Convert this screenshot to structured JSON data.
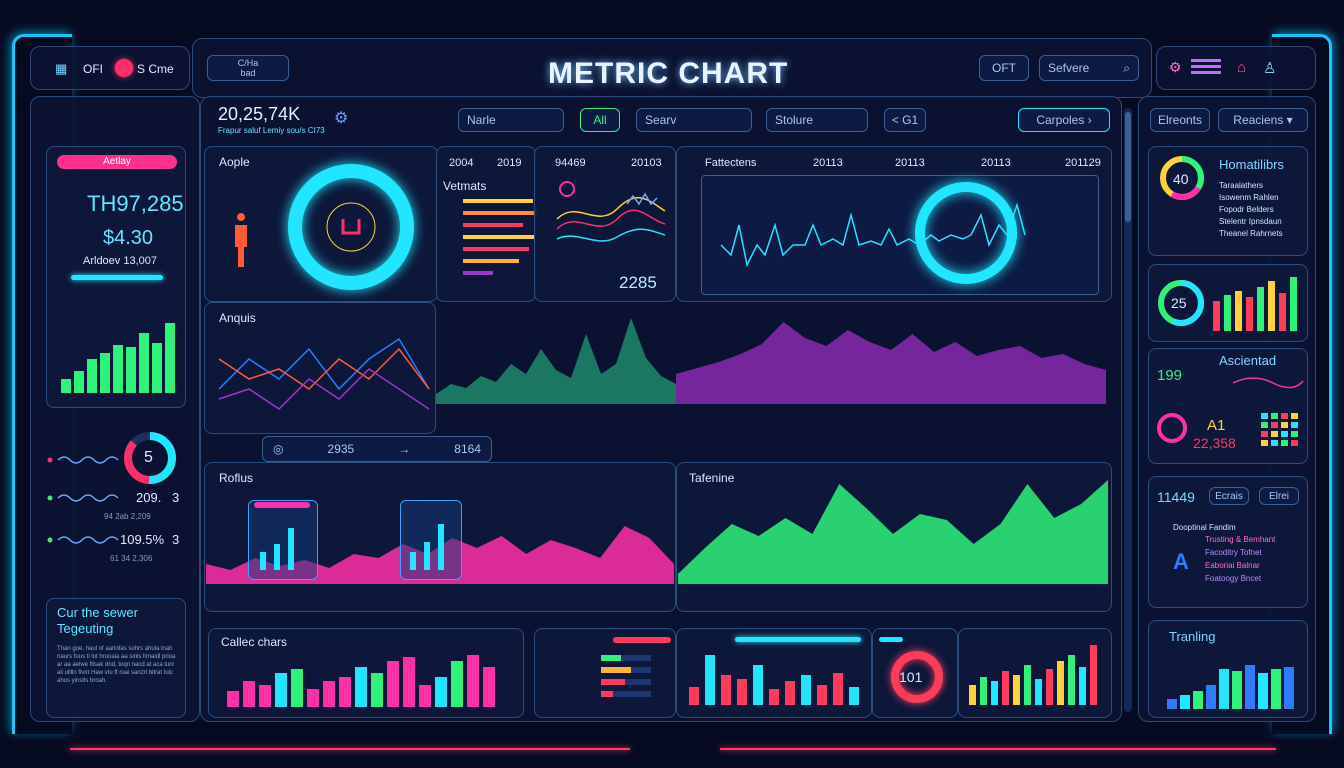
{
  "app": {
    "title": "METRIC CHART"
  },
  "topbar_left": {
    "item1": "OFI",
    "item2": "S Cme"
  },
  "topbar_center_left": {
    "badge_top": "C/Ha",
    "badge_sub": "bad"
  },
  "topbar_right": {
    "toggle": "OFT",
    "search_placeholder": "Sefvere"
  },
  "filters": {
    "name": "Narle",
    "all": "All",
    "search": "Searv",
    "stolure": "Stolure",
    "prev_label": "< G1",
    "dropdown_left": "Carpoles",
    "dropdown_right1": "Elreonts",
    "dropdown_right2": "Reaciens"
  },
  "headline": {
    "value": "20,25,74K",
    "sub": "Frapur saluf Lemiy sou/s CI73"
  },
  "left_card": {
    "badge": "Aetlay",
    "value1": "TH97,285",
    "value2": "$4.30",
    "sub": "Arldoev 13,007"
  },
  "left_gauge": {
    "value": "5"
  },
  "left_rows": [
    {
      "value": "209.",
      "badge": "3",
      "sub": "94  2ab  2,209"
    },
    {
      "value": "109.5%",
      "badge": "3",
      "sub": "61  34 2,306"
    }
  ],
  "left_note": {
    "title": "Cur the sewer Tegeuting",
    "body": "Than goe, haul of aarlofas suhrs ahula lnah naurs fuus ti lot hruoaia aa sinls llrnaidl prioa ar aa aelwe flisak dnd, toqn nacd at aca lunr ali ulllln flvirt Haw vtu ft ruai sanzrl bitrat Iulc ahos yinslts broah."
  },
  "sections": {
    "apple": "Aople",
    "vetmats": "Vetmats",
    "fattectens": "Fattectens",
    "anquis": "Anquis",
    "rotlus": "Roflus",
    "tafenine": "Tafenine",
    "callec": "Callec chars"
  },
  "header_years": {
    "a": "2004",
    "b": "2019",
    "c": "94469",
    "d": "20103",
    "e": "20113",
    "f": "20113",
    "g": "20113",
    "h": "201129"
  },
  "mini_values": {
    "v1": "2285",
    "v2": "2935",
    "v3": "8164",
    "v4": "101"
  },
  "right_panel": {
    "gauge1": "40",
    "title1": "Homatilibrs",
    "list1": [
      "Taraalathers",
      "Isowenm Rahlen",
      "Fopodr Belders",
      "Stelentr Ipnsdaun",
      "Theanel Rahrnets"
    ],
    "gauge2": "25",
    "title3": "Ascientad",
    "value3": "199",
    "value4": "A1",
    "value5": "22,358",
    "value6": "11449",
    "btn1": "Ecrais",
    "btn2": "Elrei",
    "legend_title": "Dooptinal Fandim",
    "legend": [
      "Trusting & Bemhant",
      "Facoditry Tofnet",
      "Eaboriai Balnar",
      "Foatoogy Bncet"
    ],
    "trending": "Tranling"
  },
  "colors": {
    "cyan": "#22e6ff",
    "pink": "#ff2fa8",
    "green": "#2ff27a",
    "purple": "#a234c9",
    "yellow": "#ffd23a",
    "red": "#ff3b5c"
  }
}
